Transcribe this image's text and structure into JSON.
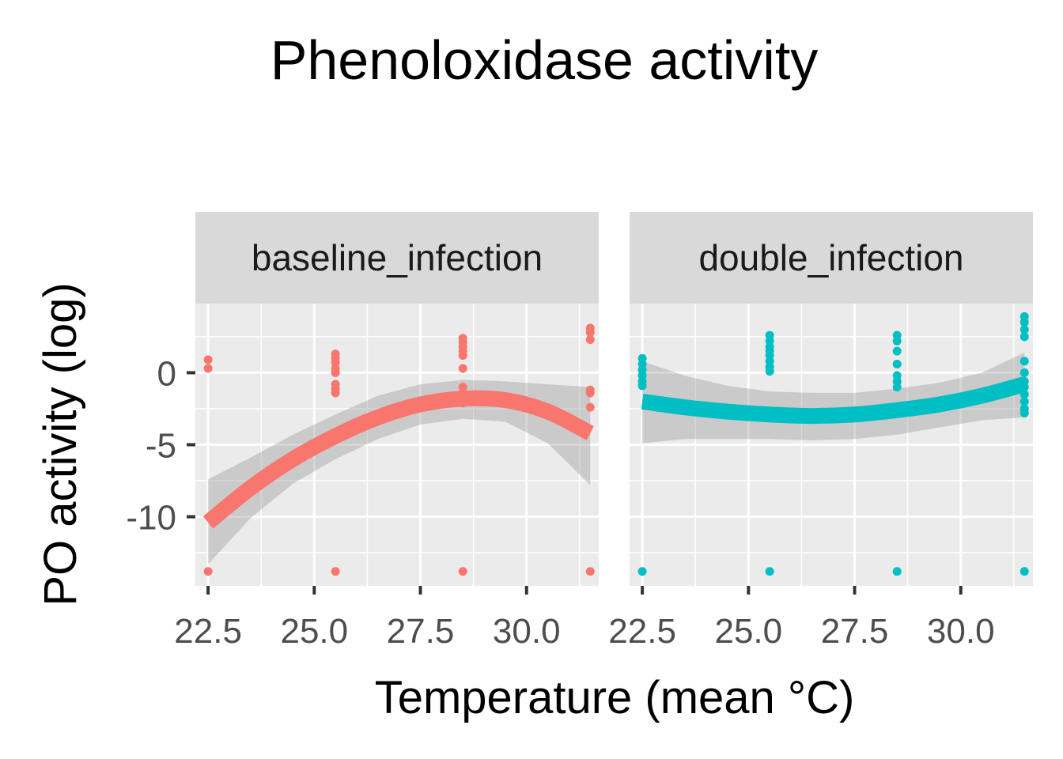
{
  "chart_data": {
    "type": "scatter",
    "title": "Phenoloxidase activity",
    "xlabel": "Temperature (mean °C)",
    "ylabel": "PO activity (log)",
    "xlim": [
      22.2,
      31.7
    ],
    "ylim": [
      -14.8,
      4.8
    ],
    "x_ticks": [
      22.5,
      25.0,
      27.5,
      30.0
    ],
    "x_tick_labels": [
      "22.5",
      "25.0",
      "27.5",
      "30.0"
    ],
    "y_ticks": [
      0,
      -5,
      -10
    ],
    "y_tick_labels": [
      "0",
      "-5",
      "-10"
    ],
    "grid": true,
    "legend": "none",
    "panels": [
      {
        "name": "baseline_infection",
        "color": "#F8766D",
        "points": [
          [
            22.5,
            0.9
          ],
          [
            22.5,
            0.3
          ],
          [
            22.5,
            -13.8
          ],
          [
            25.5,
            1.3
          ],
          [
            25.5,
            1.0
          ],
          [
            25.5,
            0.7
          ],
          [
            25.5,
            0.3
          ],
          [
            25.5,
            0.0
          ],
          [
            25.5,
            -0.8
          ],
          [
            25.5,
            -1.1
          ],
          [
            25.5,
            -1.4
          ],
          [
            25.5,
            -13.8
          ],
          [
            28.5,
            2.4
          ],
          [
            28.5,
            2.1
          ],
          [
            28.5,
            1.8
          ],
          [
            28.5,
            1.5
          ],
          [
            28.5,
            1.2
          ],
          [
            28.5,
            0.3
          ],
          [
            28.5,
            -1.0
          ],
          [
            28.5,
            -1.4
          ],
          [
            28.5,
            -1.8
          ],
          [
            28.5,
            -2.1
          ],
          [
            28.5,
            -13.8
          ],
          [
            31.5,
            3.1
          ],
          [
            31.5,
            2.8
          ],
          [
            31.5,
            2.3
          ],
          [
            31.5,
            -1.2
          ],
          [
            31.5,
            -1.4
          ],
          [
            31.5,
            -2.4
          ],
          [
            31.5,
            -13.8
          ]
        ],
        "fit": [
          [
            22.5,
            -10.4
          ],
          [
            23.5,
            -8.0
          ],
          [
            24.5,
            -6.0
          ],
          [
            25.5,
            -4.4
          ],
          [
            26.5,
            -3.1
          ],
          [
            27.5,
            -2.2
          ],
          [
            28.5,
            -1.8
          ],
          [
            29.5,
            -1.9
          ],
          [
            30.5,
            -2.7
          ],
          [
            31.5,
            -4.2
          ]
        ],
        "ci_upper": [
          [
            22.5,
            -7.4
          ],
          [
            23.5,
            -5.9
          ],
          [
            24.5,
            -4.3
          ],
          [
            25.5,
            -2.9
          ],
          [
            26.5,
            -1.6
          ],
          [
            27.5,
            -0.8
          ],
          [
            28.5,
            -0.5
          ],
          [
            29.5,
            -0.6
          ],
          [
            30.5,
            -0.8
          ],
          [
            31.5,
            -1.0
          ]
        ],
        "ci_lower": [
          [
            22.5,
            -13.3
          ],
          [
            23.5,
            -10.1
          ],
          [
            24.5,
            -7.7
          ],
          [
            25.5,
            -6.0
          ],
          [
            26.5,
            -4.6
          ],
          [
            27.5,
            -3.6
          ],
          [
            28.5,
            -3.2
          ],
          [
            29.5,
            -3.4
          ],
          [
            30.5,
            -4.9
          ],
          [
            31.5,
            -7.8
          ]
        ]
      },
      {
        "name": "double_infection",
        "color": "#00BFC4",
        "points": [
          [
            22.5,
            1.0
          ],
          [
            22.5,
            0.6
          ],
          [
            22.5,
            0.2
          ],
          [
            22.5,
            -0.2
          ],
          [
            22.5,
            -0.6
          ],
          [
            22.5,
            -0.9
          ],
          [
            22.5,
            -13.8
          ],
          [
            25.5,
            2.6
          ],
          [
            25.5,
            2.2
          ],
          [
            25.5,
            1.8
          ],
          [
            25.5,
            1.5
          ],
          [
            25.5,
            1.2
          ],
          [
            25.5,
            0.8
          ],
          [
            25.5,
            0.4
          ],
          [
            25.5,
            0.1
          ],
          [
            25.5,
            -13.8
          ],
          [
            28.5,
            2.6
          ],
          [
            28.5,
            2.2
          ],
          [
            28.5,
            1.5
          ],
          [
            28.5,
            0.6
          ],
          [
            28.5,
            -0.2
          ],
          [
            28.5,
            -0.6
          ],
          [
            28.5,
            -1.0
          ],
          [
            28.5,
            -13.8
          ],
          [
            31.5,
            3.9
          ],
          [
            31.5,
            3.5
          ],
          [
            31.5,
            3.0
          ],
          [
            31.5,
            2.5
          ],
          [
            31.5,
            0.8
          ],
          [
            31.5,
            0.0
          ],
          [
            31.5,
            -0.6
          ],
          [
            31.5,
            -1.0
          ],
          [
            31.5,
            -1.5
          ],
          [
            31.5,
            -2.0
          ],
          [
            31.5,
            -2.5
          ],
          [
            31.5,
            -2.8
          ],
          [
            31.5,
            -13.8
          ]
        ],
        "fit": [
          [
            22.5,
            -2.0
          ],
          [
            23.5,
            -2.4
          ],
          [
            24.5,
            -2.7
          ],
          [
            25.5,
            -2.9
          ],
          [
            26.5,
            -3.0
          ],
          [
            27.5,
            -2.9
          ],
          [
            28.5,
            -2.6
          ],
          [
            29.5,
            -2.2
          ],
          [
            30.5,
            -1.6
          ],
          [
            31.5,
            -0.8
          ]
        ],
        "ci_upper": [
          [
            22.5,
            0.8
          ],
          [
            23.5,
            -0.2
          ],
          [
            24.5,
            -0.9
          ],
          [
            25.5,
            -1.3
          ],
          [
            26.5,
            -1.4
          ],
          [
            27.5,
            -1.4
          ],
          [
            28.5,
            -1.1
          ],
          [
            29.5,
            -0.7
          ],
          [
            30.5,
            0.0
          ],
          [
            31.5,
            1.4
          ]
        ],
        "ci_lower": [
          [
            22.5,
            -4.9
          ],
          [
            23.5,
            -4.6
          ],
          [
            24.5,
            -4.6
          ],
          [
            25.5,
            -4.6
          ],
          [
            26.5,
            -4.7
          ],
          [
            27.5,
            -4.6
          ],
          [
            28.5,
            -4.3
          ],
          [
            29.5,
            -3.8
          ],
          [
            30.5,
            -3.3
          ],
          [
            31.5,
            -3.1
          ]
        ]
      }
    ]
  }
}
